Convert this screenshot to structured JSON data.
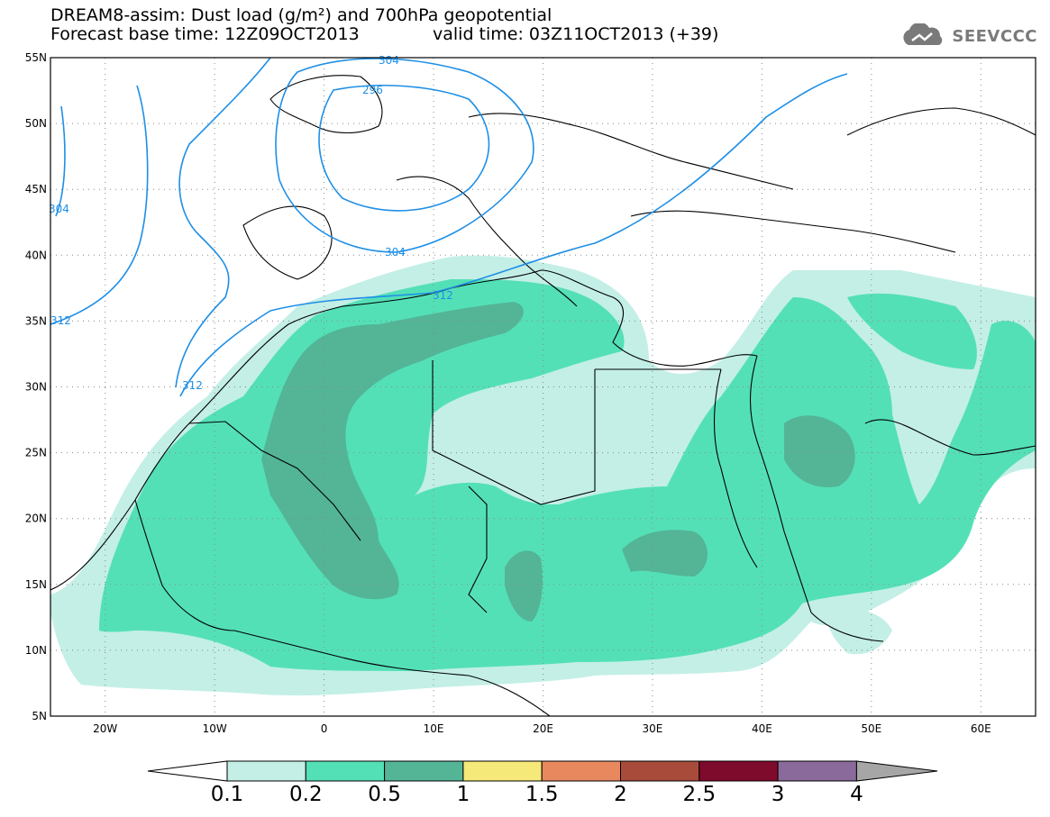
{
  "title": {
    "line1": "DREAM8-assim: Dust load (g/m²) and 700hPa geopotential",
    "line2_base": "Forecast base time: 12Z09OCT2013",
    "line2_valid": "valid time: 03Z11OCT2013 (+39)"
  },
  "logo": {
    "text": "SEEVCCC",
    "icon": "cloud-icon"
  },
  "map": {
    "lat_ticks": [
      "55N",
      "50N",
      "45N",
      "40N",
      "35N",
      "30N",
      "25N",
      "20N",
      "15N",
      "10N",
      "5N"
    ],
    "lon_ticks": [
      "20W",
      "10W",
      "0",
      "10E",
      "20E",
      "30E",
      "40E",
      "50E",
      "60E"
    ],
    "contour_labels": [
      "304",
      "296",
      "304",
      "304",
      "312",
      "312",
      "312"
    ]
  },
  "colorbar": {
    "labels": [
      "0.1",
      "0.2",
      "0.5",
      "1",
      "1.5",
      "2",
      "2.5",
      "3",
      "4"
    ],
    "colors": [
      "#ffffff",
      "#c3efe6",
      "#54e0b7",
      "#53b596",
      "#f5e97a",
      "#e8885f",
      "#a94b3b",
      "#7e0a2c",
      "#8a6a9a",
      "#a6a6a6"
    ]
  },
  "colors": {
    "dust_levels": [
      "#c3efe6",
      "#54e0b7",
      "#53b596"
    ],
    "geopotential_contour": "#1e8fe6",
    "coastline": "#000000"
  }
}
